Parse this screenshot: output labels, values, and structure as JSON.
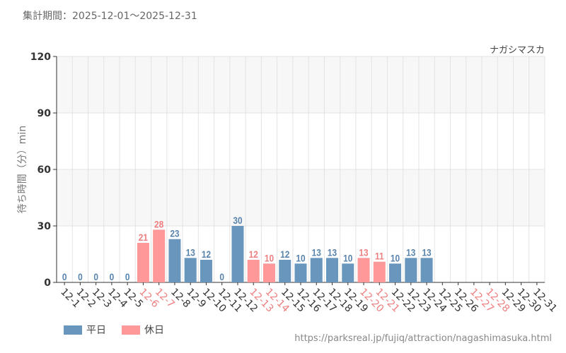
{
  "header": {
    "period": "集計期間：2025-12-01〜2025-12-31",
    "attraction_name": "ナガシマスカ"
  },
  "footer": {
    "url": "https://parksreal.jp/fujiq/attraction/nagashimasuka.html"
  },
  "legend": [
    {
      "label": "平日",
      "color": "#6896bd"
    },
    {
      "label": "休日",
      "color": "#ff9999"
    }
  ],
  "colors": {
    "weekday_bar": "#6896bd",
    "holiday_bar": "#ff9999",
    "weekday_text": "#5783ad",
    "holiday_text": "#ee7f7f",
    "band": "#f7f7f7",
    "grid": "#e3e3e3",
    "axis": "#333333",
    "tick_label": "#333333"
  },
  "chart_data": {
    "type": "bar",
    "title": "",
    "xlabel": "",
    "ylabel": "待ち時間（分）min",
    "ylim": [
      0,
      120
    ],
    "yticks": [
      0,
      30,
      60,
      90,
      120
    ],
    "categories": [
      "12-1",
      "12-2",
      "12-3",
      "12-4",
      "12-5",
      "12-6",
      "12-7",
      "12-8",
      "12-9",
      "12-10",
      "12-11",
      "12-12",
      "12-13",
      "12-14",
      "12-15",
      "12-16",
      "12-17",
      "12-18",
      "12-19",
      "12-20",
      "12-21",
      "12-22",
      "12-23",
      "12-24",
      "12-25",
      "12-26",
      "12-27",
      "12-28",
      "12-29",
      "12-30",
      "12-31"
    ],
    "values": [
      0,
      0,
      0,
      0,
      0,
      21,
      28,
      23,
      13,
      12,
      0,
      30,
      12,
      10,
      12,
      10,
      13,
      13,
      10,
      13,
      11,
      10,
      13,
      13,
      null,
      null,
      null,
      null,
      null,
      null,
      null
    ],
    "holiday": [
      false,
      false,
      false,
      false,
      false,
      true,
      true,
      false,
      false,
      false,
      false,
      false,
      true,
      true,
      false,
      false,
      false,
      false,
      false,
      true,
      true,
      false,
      false,
      false,
      false,
      false,
      true,
      true,
      false,
      false,
      false
    ]
  }
}
